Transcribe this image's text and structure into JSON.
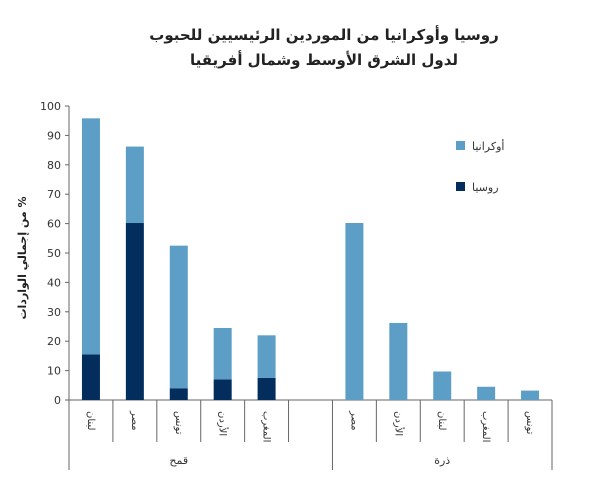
{
  "chart_data": {
    "type": "bar",
    "stacked": true,
    "title_lines": [
      "روسيا وأوكرانيا من الموردين الرئيسيين للحبوب",
      "لدول الشرق الأوسط وشمال أفريقيا"
    ],
    "ylabel": "% من إجمالي الواردات",
    "ylim": [
      0,
      100
    ],
    "yticks": [
      0,
      10,
      20,
      30,
      40,
      50,
      60,
      70,
      80,
      90,
      100
    ],
    "grid": false,
    "legend_position": "right",
    "colors": {
      "russia": "#032d5c",
      "ukraine": "#5c9ec6",
      "axis": "#666666"
    },
    "groups": [
      {
        "name": "قمح",
        "categories": [
          "لبنان",
          "مصر",
          "تونس",
          "الأردن",
          "المغرب"
        ],
        "series": [
          {
            "name": "روسيا",
            "values": [
              15.5,
              60.2,
              4,
              7,
              7.5
            ]
          },
          {
            "name": "أوكرانيا",
            "values": [
              80.3,
              26,
              48.5,
              17.5,
              14.5
            ]
          }
        ]
      },
      {
        "name": "ذرة",
        "categories": [
          "مصر",
          "الأردن",
          "لبنان",
          "المغرب",
          "تونس"
        ],
        "series": [
          {
            "name": "روسيا",
            "values": [
              0,
              0,
              0,
              0,
              0
            ]
          },
          {
            "name": "أوكرانيا",
            "values": [
              60.2,
              26.2,
              9.7,
              4.5,
              3.2
            ]
          }
        ]
      }
    ],
    "legend": [
      {
        "name": "أوكرانيا",
        "color_key": "ukraine"
      },
      {
        "name": "روسيا",
        "color_key": "russia"
      }
    ]
  }
}
